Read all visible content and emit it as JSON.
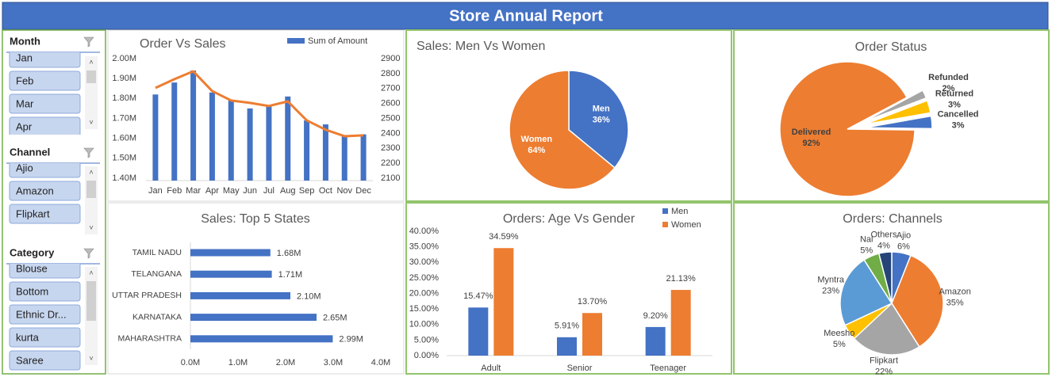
{
  "title": "Store Annual Report",
  "slicers": [
    {
      "title": "Month",
      "items": [
        "Jan",
        "Feb",
        "Mar",
        "Apr"
      ]
    },
    {
      "title": "Channel",
      "items": [
        "Ajio",
        "Amazon",
        "Flipkart"
      ]
    },
    {
      "title": "Category",
      "items": [
        "Blouse",
        "Bottom",
        "Ethnic Dr...",
        "kurta",
        "Saree"
      ]
    }
  ],
  "chart_data": [
    {
      "type": "combo",
      "title": "Order Vs Sales",
      "categories": [
        "Jan",
        "Feb",
        "Mar",
        "Apr",
        "May",
        "Jun",
        "Jul",
        "Aug",
        "Sep",
        "Oct",
        "Nov",
        "Dec"
      ],
      "series": [
        {
          "name": "Sum of Amount",
          "kind": "bar",
          "color": "#4472c4",
          "values": [
            1820000,
            1880000,
            1940000,
            1830000,
            1790000,
            1750000,
            1760000,
            1810000,
            1690000,
            1670000,
            1610000,
            1620000
          ]
        },
        {
          "kind": "line",
          "axis": "y2",
          "color": "#ed7d31",
          "values": [
            2704,
            2762,
            2815,
            2683,
            2620,
            2604,
            2583,
            2614,
            2487,
            2424,
            2381,
            2387
          ]
        }
      ],
      "ylim": [
        1400000,
        2000000
      ],
      "yticks": [
        {
          "value": 1400000,
          "label": "1.40M"
        },
        {
          "value": 1500000,
          "label": "1.50M"
        },
        {
          "value": 1600000,
          "label": "1.60M"
        },
        {
          "value": 1700000,
          "label": "1.70M"
        },
        {
          "value": 1800000,
          "label": "1.80M"
        },
        {
          "value": 1900000,
          "label": "1.90M"
        },
        {
          "value": 2000000,
          "label": "2.00M"
        }
      ],
      "y2lim": [
        2100,
        2900
      ],
      "y2ticks": [
        2100,
        2200,
        2300,
        2400,
        2500,
        2600,
        2700,
        2800,
        2900
      ],
      "legend": "top-right"
    },
    {
      "type": "pie",
      "title": "Sales: Men Vs Women",
      "categories": [
        "Men",
        "Women"
      ],
      "values": [
        36,
        64
      ],
      "value_labels": [
        "36%",
        "64%"
      ],
      "colors": [
        "#4472c4",
        "#ed7d31"
      ]
    },
    {
      "type": "pie",
      "title": "Order Status",
      "categories": [
        "Refunded",
        "Returned",
        "Cancelled",
        "Delivered"
      ],
      "values": [
        2,
        3,
        3,
        92
      ],
      "value_labels": [
        "2%",
        "3%",
        "3%",
        "92%"
      ],
      "colors": [
        "#a5a5a5",
        "#ffc000",
        "#4472c4",
        "#ed7d31"
      ]
    },
    {
      "type": "hbar",
      "title": "Sales: Top 5 States",
      "categories": [
        "TAMIL NADU",
        "TELANGANA",
        "UTTAR PRADESH",
        "KARNATAKA",
        "MAHARASHTRA"
      ],
      "values": [
        1680000,
        1710000,
        2100000,
        2650000,
        2990000
      ],
      "value_labels": [
        "1.68M",
        "1.71M",
        "2.10M",
        "2.65M",
        "2.99M"
      ],
      "color": "#4472c4",
      "xlim": [
        0,
        4000000
      ],
      "xticks": [
        {
          "value": 0,
          "label": "0.0M"
        },
        {
          "value": 1000000,
          "label": "1.0M"
        },
        {
          "value": 2000000,
          "label": "2.0M"
        },
        {
          "value": 3000000,
          "label": "3.0M"
        },
        {
          "value": 4000000,
          "label": "4.0M"
        }
      ]
    },
    {
      "type": "grouped-bar",
      "title": "Orders: Age Vs Gender",
      "categories": [
        "Adult",
        "Senior",
        "Teenager"
      ],
      "series": [
        {
          "name": "Men",
          "color": "#4472c4",
          "values": [
            15.47,
            5.91,
            9.2
          ],
          "value_labels": [
            "15.47%",
            "5.91%",
            "9.20%"
          ]
        },
        {
          "name": "Women",
          "color": "#ed7d31",
          "values": [
            34.59,
            13.7,
            21.13
          ],
          "value_labels": [
            "34.59%",
            "13.70%",
            "21.13%"
          ]
        }
      ],
      "ylim": [
        0,
        40
      ],
      "yticks": [
        {
          "value": 0,
          "label": "0.00%"
        },
        {
          "value": 5,
          "label": "5.00%"
        },
        {
          "value": 10,
          "label": "10.00%"
        },
        {
          "value": 15,
          "label": "15.00%"
        },
        {
          "value": 20,
          "label": "20.00%"
        },
        {
          "value": 25,
          "label": "25.00%"
        },
        {
          "value": 30,
          "label": "30.00%"
        },
        {
          "value": 35,
          "label": "35.00%"
        },
        {
          "value": 40,
          "label": "40.00%"
        }
      ],
      "legend": "top-right"
    },
    {
      "type": "pie",
      "title": "Orders: Channels",
      "categories": [
        "Ajio",
        "Amazon",
        "Flipkart",
        "Meesho",
        "Myntra",
        "Nal",
        "Others"
      ],
      "values": [
        6,
        35,
        22,
        5,
        23,
        5,
        4
      ],
      "value_labels": [
        "6%",
        "35%",
        "22%",
        "5%",
        "23%",
        "5%",
        "4%"
      ],
      "colors": [
        "#4472c4",
        "#ed7d31",
        "#a5a5a5",
        "#ffc000",
        "#5b9bd5",
        "#70ad47",
        "#264478"
      ]
    }
  ]
}
